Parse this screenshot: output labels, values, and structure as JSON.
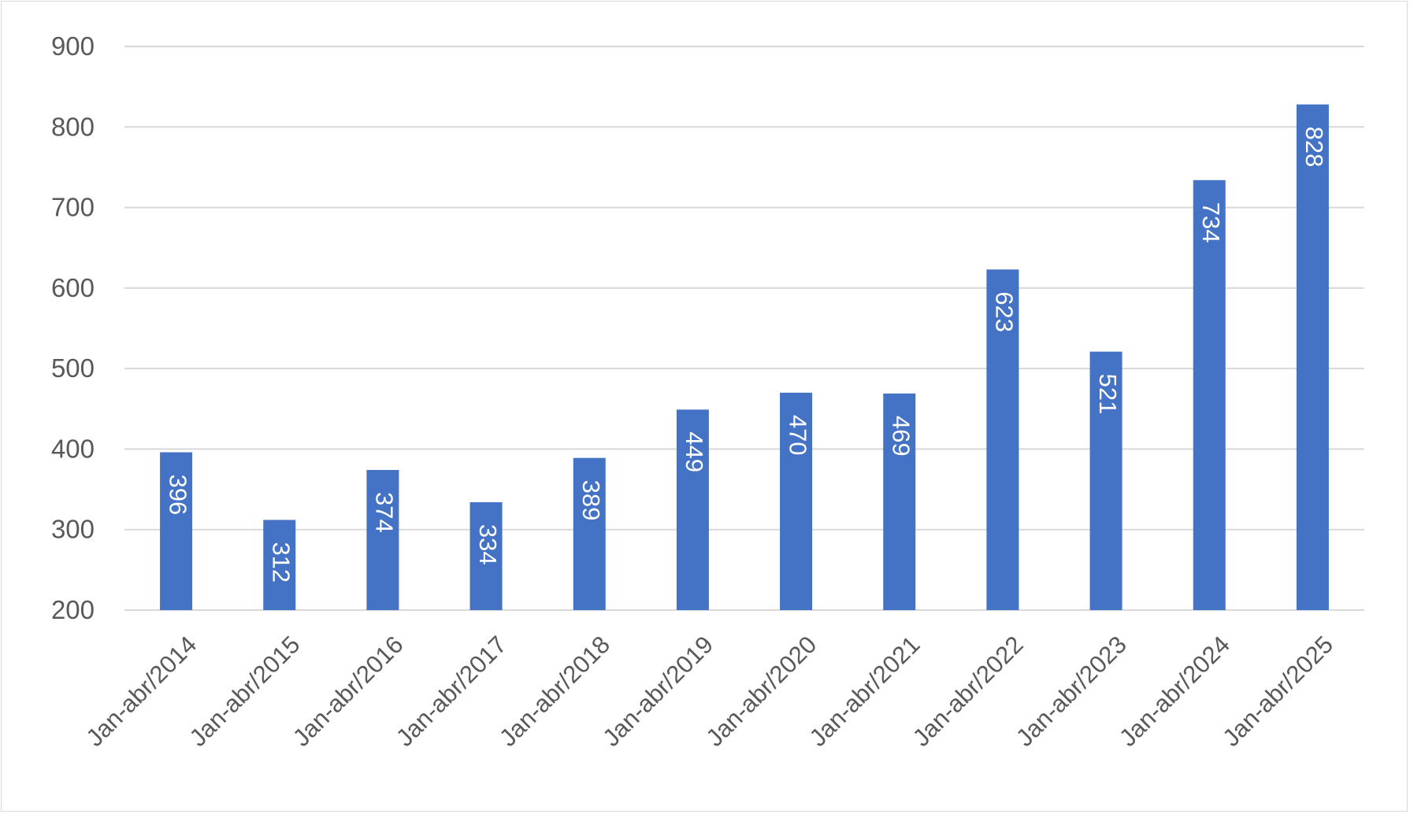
{
  "chart_data": {
    "type": "bar",
    "title": "",
    "xlabel": "",
    "ylabel": "",
    "categories": [
      "Jan-abr/2014",
      "Jan-abr/2015",
      "Jan-abr/2016",
      "Jan-abr/2017",
      "Jan-abr/2018",
      "Jan-abr/2019",
      "Jan-abr/2020",
      "Jan-abr/2021",
      "Jan-abr/2022",
      "Jan-abr/2023",
      "Jan-abr/2024",
      "Jan-abr/2025"
    ],
    "values": [
      396,
      312,
      374,
      334,
      389,
      449,
      470,
      469,
      623,
      521,
      734,
      828
    ],
    "ylim": [
      200,
      900
    ],
    "yticks": [
      200,
      300,
      400,
      500,
      600,
      700,
      800,
      900
    ],
    "grid": true,
    "legend": "none",
    "bar_color": "#4472c4",
    "grid_color": "#d9d9d9",
    "data_label_color": "#ffffff"
  }
}
